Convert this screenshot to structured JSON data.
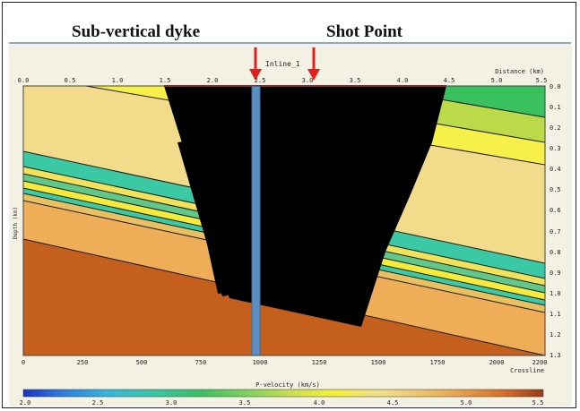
{
  "labels": {
    "dyke": "Sub-vertical dyke",
    "shot_point": "Shot Point",
    "inline": "Inline_1",
    "distance_axis": "Distance (km)",
    "depth_axis": "Depth (km)",
    "crossline_axis": "Crossline",
    "colorbar_title": "P-velocity (km/s)"
  },
  "top_ticks": [
    "0.0",
    "0.5",
    "1.0",
    "1.5",
    "2.0",
    "2.5",
    "3.0",
    "3.5",
    "4.0",
    "4.5",
    "5.0",
    "5.5"
  ],
  "right_ticks": [
    "0.0",
    "0.1",
    "0.2",
    "0.3",
    "0.4",
    "0.5",
    "0.6",
    "0.7",
    "0.8",
    "0.9",
    "1.0",
    "1.1",
    "1.2",
    "1.3"
  ],
  "bottom_ticks": [
    "0",
    "250",
    "500",
    "750",
    "1000",
    "1250",
    "1500",
    "1750",
    "2000",
    "2200"
  ],
  "colorbar_ticks": [
    "2.0",
    "2.5",
    "3.0",
    "3.5",
    "4.0",
    "4.5",
    "5.0",
    "5.5"
  ],
  "colors": {
    "arrow": "#e0201c",
    "dyke": "#5b8fc4",
    "ray_coverage": "#000000",
    "surface_line": "#cc1010"
  }
}
